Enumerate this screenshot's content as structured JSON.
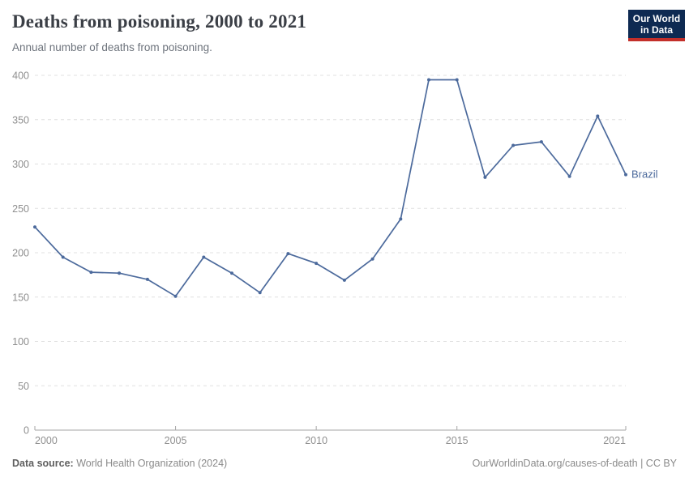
{
  "header": {
    "title": "Deaths from poisoning, 2000 to 2021",
    "subtitle": "Annual number of deaths from poisoning."
  },
  "logo": {
    "line1": "Our World",
    "line2": "in Data"
  },
  "footer": {
    "source_label": "Data source:",
    "source_text": " World Health Organization (2024)",
    "credit": "OurWorldinData.org/causes-of-death | CC BY"
  },
  "colors": {
    "series_line": "#4C6A9C",
    "logo_bg": "#0E2A52",
    "logo_underline": "#C32F2A",
    "gridline": "#e0e0e0",
    "axis": "#a6a6a6",
    "tick_label": "#8f8f8f"
  },
  "chart_data": {
    "type": "line",
    "title": "Deaths from poisoning, 2000 to 2021",
    "subtitle": "Annual number of deaths from poisoning.",
    "xlabel": "",
    "ylabel": "",
    "x": [
      2000,
      2001,
      2002,
      2003,
      2004,
      2005,
      2006,
      2007,
      2008,
      2009,
      2010,
      2011,
      2012,
      2013,
      2014,
      2015,
      2016,
      2017,
      2018,
      2019,
      2020,
      2021
    ],
    "series": [
      {
        "name": "Brazil",
        "color": "#4C6A9C",
        "values": [
          229,
          195,
          178,
          177,
          170,
          151,
          195,
          177,
          155,
          199,
          188,
          169,
          193,
          238,
          395,
          395,
          285,
          321,
          325,
          286,
          354,
          288
        ]
      }
    ],
    "ylim": [
      0,
      400
    ],
    "yticks": [
      0,
      50,
      100,
      150,
      200,
      250,
      300,
      350,
      400
    ],
    "xticks": [
      2000,
      2005,
      2010,
      2015,
      2021
    ],
    "grid": "horizontal-dashed",
    "legend": "series-end-label"
  }
}
